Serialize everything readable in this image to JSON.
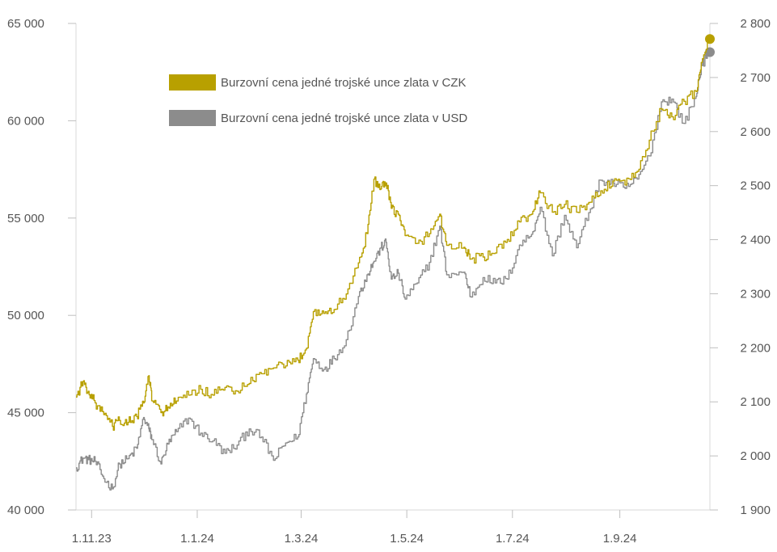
{
  "chart_data": {
    "type": "line",
    "title": "",
    "xlabel": "",
    "ylabel_left": "",
    "ylabel_right": "",
    "x_ticks": [
      {
        "date": "2023-11-01",
        "label": "1.11.23"
      },
      {
        "date": "2024-01-01",
        "label": "1.1.24"
      },
      {
        "date": "2024-03-01",
        "label": "1.3.24"
      },
      {
        "date": "2024-05-01",
        "label": "1.5.24"
      },
      {
        "date": "2024-07-01",
        "label": "1.7.24"
      },
      {
        "date": "2024-09-01",
        "label": "1.9.24"
      }
    ],
    "xlim": [
      "2023-10-23",
      "2024-10-23"
    ],
    "y_left": {
      "ylim": [
        40000,
        65000
      ],
      "ticks": [
        {
          "value": 40000,
          "label": "40 000"
        },
        {
          "value": 45000,
          "label": "45 000"
        },
        {
          "value": 50000,
          "label": "50 000"
        },
        {
          "value": 55000,
          "label": "55 000"
        },
        {
          "value": 60000,
          "label": "60 000"
        },
        {
          "value": 65000,
          "label": "65 000"
        }
      ]
    },
    "y_right": {
      "ylim": [
        1900,
        2800
      ],
      "ticks": [
        {
          "value": 1900,
          "label": "1 900"
        },
        {
          "value": 2000,
          "label": "2 000"
        },
        {
          "value": 2100,
          "label": "2 100"
        },
        {
          "value": 2200,
          "label": "2 200"
        },
        {
          "value": 2300,
          "label": "2 300"
        },
        {
          "value": 2400,
          "label": "2 400"
        },
        {
          "value": 2500,
          "label": "2 500"
        },
        {
          "value": 2600,
          "label": "2 600"
        },
        {
          "value": 2700,
          "label": "2 700"
        },
        {
          "value": 2800,
          "label": "2 800"
        }
      ]
    },
    "legend_position": "top-left",
    "grid": false,
    "series": [
      {
        "name": "Burzovní cena jedné trojské unce zlata v CZK",
        "axis": "left",
        "color": "#B8A000",
        "points": [
          [
            "2023-10-23",
            45800
          ],
          [
            "2023-10-27",
            46600
          ],
          [
            "2023-10-30",
            46100
          ],
          [
            "2023-11-03",
            45500
          ],
          [
            "2023-11-08",
            44900
          ],
          [
            "2023-11-13",
            44300
          ],
          [
            "2023-11-17",
            44600
          ],
          [
            "2023-11-22",
            44500
          ],
          [
            "2023-11-27",
            44800
          ],
          [
            "2023-12-01",
            45500
          ],
          [
            "2023-12-04",
            46900
          ],
          [
            "2023-12-06",
            45600
          ],
          [
            "2023-12-11",
            45000
          ],
          [
            "2023-12-15",
            45300
          ],
          [
            "2023-12-20",
            45600
          ],
          [
            "2023-12-27",
            45900
          ],
          [
            "2024-01-03",
            46200
          ],
          [
            "2024-01-10",
            45900
          ],
          [
            "2024-01-17",
            46300
          ],
          [
            "2024-01-24",
            46100
          ],
          [
            "2024-01-31",
            46500
          ],
          [
            "2024-02-07",
            47000
          ],
          [
            "2024-02-14",
            47300
          ],
          [
            "2024-02-21",
            47400
          ],
          [
            "2024-02-28",
            47700
          ],
          [
            "2024-03-04",
            48300
          ],
          [
            "2024-03-08",
            50200
          ],
          [
            "2024-03-14",
            50100
          ],
          [
            "2024-03-20",
            50300
          ],
          [
            "2024-03-27",
            51100
          ],
          [
            "2024-04-03",
            52700
          ],
          [
            "2024-04-08",
            54200
          ],
          [
            "2024-04-12",
            57000
          ],
          [
            "2024-04-16",
            56500
          ],
          [
            "2024-04-19",
            56800
          ],
          [
            "2024-04-22",
            55500
          ],
          [
            "2024-04-26",
            55200
          ],
          [
            "2024-04-30",
            54100
          ],
          [
            "2024-05-07",
            53700
          ],
          [
            "2024-05-14",
            54200
          ],
          [
            "2024-05-20",
            55200
          ],
          [
            "2024-05-24",
            53600
          ],
          [
            "2024-06-03",
            53500
          ],
          [
            "2024-06-07",
            52900
          ],
          [
            "2024-06-14",
            53000
          ],
          [
            "2024-06-21",
            53200
          ],
          [
            "2024-06-28",
            53900
          ],
          [
            "2024-07-05",
            54800
          ],
          [
            "2024-07-12",
            55200
          ],
          [
            "2024-07-17",
            56300
          ],
          [
            "2024-07-24",
            55300
          ],
          [
            "2024-07-31",
            55700
          ],
          [
            "2024-08-07",
            55300
          ],
          [
            "2024-08-14",
            55800
          ],
          [
            "2024-08-21",
            56400
          ],
          [
            "2024-08-28",
            56900
          ],
          [
            "2024-09-04",
            56700
          ],
          [
            "2024-09-11",
            57400
          ],
          [
            "2024-09-18",
            59000
          ],
          [
            "2024-09-25",
            60600
          ],
          [
            "2024-10-01",
            60200
          ],
          [
            "2024-10-08",
            61000
          ],
          [
            "2024-10-15",
            61500
          ],
          [
            "2024-10-18",
            63000
          ],
          [
            "2024-10-23",
            64200
          ]
        ]
      },
      {
        "name": "Burzovní cena jedné trojské unce zlata v USD",
        "axis": "right",
        "color": "#8C8C8C",
        "points": [
          [
            "2023-10-23",
            1978
          ],
          [
            "2023-10-27",
            1996
          ],
          [
            "2023-10-30",
            1993
          ],
          [
            "2023-11-03",
            1990
          ],
          [
            "2023-11-08",
            1958
          ],
          [
            "2023-11-13",
            1939
          ],
          [
            "2023-11-17",
            1985
          ],
          [
            "2023-11-22",
            1995
          ],
          [
            "2023-11-27",
            2014
          ],
          [
            "2023-12-01",
            2071
          ],
          [
            "2023-12-04",
            2050
          ],
          [
            "2023-12-06",
            2030
          ],
          [
            "2023-12-11",
            1985
          ],
          [
            "2023-12-15",
            2022
          ],
          [
            "2023-12-20",
            2045
          ],
          [
            "2023-12-27",
            2070
          ],
          [
            "2024-01-03",
            2042
          ],
          [
            "2024-01-10",
            2028
          ],
          [
            "2024-01-17",
            2005
          ],
          [
            "2024-01-24",
            2020
          ],
          [
            "2024-01-31",
            2050
          ],
          [
            "2024-02-07",
            2035
          ],
          [
            "2024-02-14",
            1992
          ],
          [
            "2024-02-21",
            2024
          ],
          [
            "2024-02-28",
            2035
          ],
          [
            "2024-03-04",
            2115
          ],
          [
            "2024-03-08",
            2180
          ],
          [
            "2024-03-14",
            2160
          ],
          [
            "2024-03-20",
            2180
          ],
          [
            "2024-03-27",
            2215
          ],
          [
            "2024-04-03",
            2295
          ],
          [
            "2024-04-08",
            2335
          ],
          [
            "2024-04-12",
            2360
          ],
          [
            "2024-04-16",
            2385
          ],
          [
            "2024-04-19",
            2395
          ],
          [
            "2024-04-22",
            2327
          ],
          [
            "2024-04-26",
            2338
          ],
          [
            "2024-04-30",
            2290
          ],
          [
            "2024-05-07",
            2320
          ],
          [
            "2024-05-14",
            2358
          ],
          [
            "2024-05-20",
            2425
          ],
          [
            "2024-05-24",
            2335
          ],
          [
            "2024-06-03",
            2340
          ],
          [
            "2024-06-07",
            2294
          ],
          [
            "2024-06-14",
            2330
          ],
          [
            "2024-06-21",
            2320
          ],
          [
            "2024-06-28",
            2327
          ],
          [
            "2024-07-05",
            2390
          ],
          [
            "2024-07-12",
            2410
          ],
          [
            "2024-07-17",
            2460
          ],
          [
            "2024-07-24",
            2370
          ],
          [
            "2024-07-31",
            2445
          ],
          [
            "2024-08-07",
            2385
          ],
          [
            "2024-08-14",
            2450
          ],
          [
            "2024-08-21",
            2510
          ],
          [
            "2024-08-28",
            2505
          ],
          [
            "2024-09-04",
            2495
          ],
          [
            "2024-09-11",
            2512
          ],
          [
            "2024-09-18",
            2555
          ],
          [
            "2024-09-25",
            2655
          ],
          [
            "2024-10-01",
            2660
          ],
          [
            "2024-10-08",
            2615
          ],
          [
            "2024-10-15",
            2665
          ],
          [
            "2024-10-18",
            2722
          ],
          [
            "2024-10-23",
            2747
          ]
        ]
      }
    ]
  }
}
